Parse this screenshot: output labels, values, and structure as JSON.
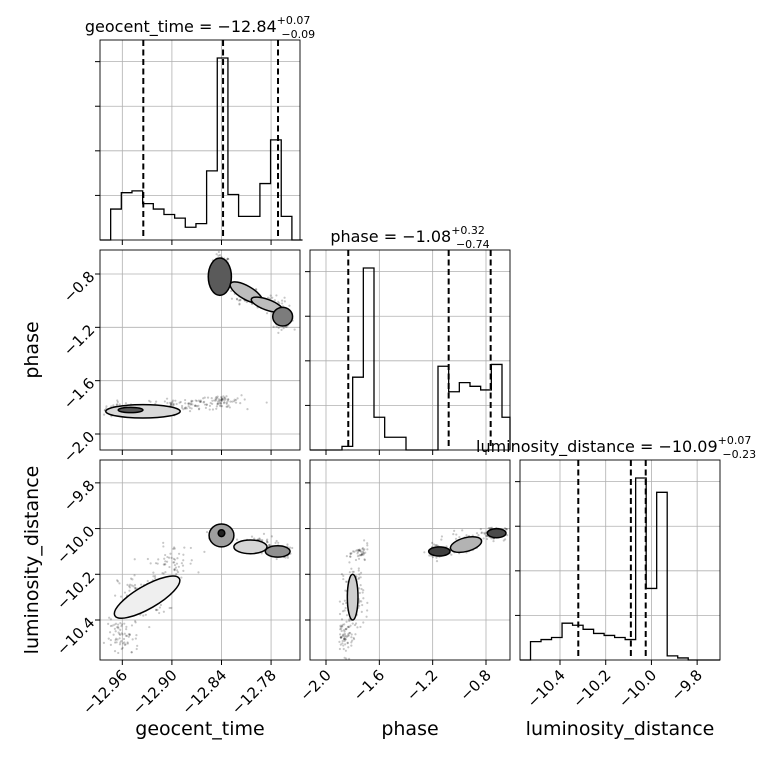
{
  "chart_data": {
    "type": "corner",
    "parameters": [
      "geocent_time",
      "phase",
      "luminosity_distance"
    ],
    "ranges": {
      "geocent_time": [
        -12.987,
        -12.745
      ],
      "phase": [
        -2.12,
        -0.62
      ],
      "luminosity_distance": [
        -10.575,
        -9.7
      ]
    },
    "grid": true,
    "titles": [
      {
        "label": "geocent_time = −12.84",
        "sup": "+0.07",
        "sub": "−0.09"
      },
      {
        "label": "phase = −1.08",
        "sup": "+0.32",
        "sub": "−0.74"
      },
      {
        "label": "luminosity_distance = −10.09",
        "sup": "+0.07",
        "sub": "−0.23"
      }
    ],
    "axis_labels": {
      "geocent_time": "geocent_time",
      "phase": "phase",
      "luminosity_distance": "luminosity_distance"
    },
    "ticks": {
      "geocent_time": {
        "values": [
          -12.96,
          -12.9,
          -12.84,
          -12.78
        ],
        "labels": [
          "−12.96",
          "−12.90",
          "−12.84",
          "−12.78"
        ]
      },
      "phase": {
        "values": [
          -2.0,
          -1.6,
          -1.2,
          -0.8
        ],
        "labels": [
          "−2.0",
          "−1.6",
          "−1.2",
          "−0.8"
        ]
      },
      "luminosity_distance": {
        "values": [
          -10.4,
          -10.2,
          -10.0,
          -9.8
        ],
        "labels": [
          "−10.4",
          "−10.2",
          "−10.0",
          "−9.8"
        ]
      }
    },
    "histograms": {
      "geocent_time": {
        "edges": [
          -12.987,
          -12.9741,
          -12.9612,
          -12.9483,
          -12.9354,
          -12.9225,
          -12.9096,
          -12.8967,
          -12.8838,
          -12.8709,
          -12.858,
          -12.8451,
          -12.8322,
          -12.8193,
          -12.8064,
          -12.7935,
          -12.7806,
          -12.7677,
          -12.7548,
          -12.7419
        ],
        "counts": [
          0,
          0.17,
          0.26,
          0.27,
          0.2,
          0.17,
          0.14,
          0.12,
          0.07,
          0.09,
          0.38,
          1.0,
          0.25,
          0.13,
          0.13,
          0.31,
          0.55,
          0.13,
          0
        ]
      },
      "phase": {
        "edges": [
          -2.12,
          -2.04,
          -1.96,
          -1.88,
          -1.8,
          -1.72,
          -1.64,
          -1.56,
          -1.48,
          -1.4,
          -1.32,
          -1.24,
          -1.16,
          -1.08,
          -1.0,
          -0.92,
          -0.84,
          -0.76,
          -0.68,
          -0.62
        ],
        "counts": [
          0,
          0,
          0,
          0.02,
          0.4,
          1.0,
          0.18,
          0.07,
          0.07,
          0,
          0,
          0,
          0.46,
          0.32,
          0.37,
          0.35,
          0.33,
          0.47,
          0.18
        ]
      },
      "luminosity_distance": {
        "edges": [
          -10.575,
          -10.529,
          -10.483,
          -10.437,
          -10.391,
          -10.345,
          -10.299,
          -10.253,
          -10.207,
          -10.161,
          -10.115,
          -10.069,
          -10.023,
          -9.977,
          -9.931,
          -9.885,
          -9.839,
          -9.793,
          -9.747,
          -9.7
        ],
        "counts": [
          0,
          0.09,
          0.1,
          0.11,
          0.18,
          0.17,
          0.15,
          0.13,
          0.12,
          0.11,
          0.1,
          0.89,
          0.35,
          0.82,
          0.02,
          0.01,
          0,
          0,
          0
        ]
      }
    },
    "quantiles": {
      "geocent_time": [
        -12.9346,
        -12.8381,
        -12.7716
      ],
      "phase": [
        -1.833,
        -1.08,
        -0.765
      ],
      "luminosity_distance": [
        -10.32,
        -10.09,
        -10.025
      ]
    },
    "scatter_density": {
      "geocent_time|phase": [
        {
          "x": -12.84,
          "y": -0.76,
          "sx": 0.005,
          "sy": 0.05,
          "n": 120
        },
        {
          "x": -12.81,
          "y": -0.96,
          "sx": 0.008,
          "sy": 0.03,
          "n": 70
        },
        {
          "x": -12.78,
          "y": -1.03,
          "sx": 0.008,
          "sy": 0.03,
          "n": 70
        },
        {
          "x": -12.765,
          "y": -1.14,
          "sx": 0.006,
          "sy": 0.03,
          "n": 80
        },
        {
          "x": -12.96,
          "y": -1.83,
          "sx": 0.014,
          "sy": 0.025,
          "n": 120
        },
        {
          "x": -12.88,
          "y": -1.78,
          "sx": 0.03,
          "sy": 0.02,
          "n": 100
        },
        {
          "x": -12.84,
          "y": -1.75,
          "sx": 0.012,
          "sy": 0.02,
          "n": 50
        }
      ],
      "geocent_time|luminosity_distance": [
        {
          "x": -12.84,
          "y": -10.02,
          "sx": 0.006,
          "sy": 0.02,
          "n": 100
        },
        {
          "x": -12.795,
          "y": -10.07,
          "sx": 0.01,
          "sy": 0.02,
          "n": 60
        },
        {
          "x": -12.77,
          "y": -10.1,
          "sx": 0.007,
          "sy": 0.015,
          "n": 70
        },
        {
          "x": -12.935,
          "y": -10.3,
          "sx": 0.015,
          "sy": 0.05,
          "n": 110
        },
        {
          "x": -12.9,
          "y": -10.15,
          "sx": 0.015,
          "sy": 0.04,
          "n": 60
        },
        {
          "x": -12.96,
          "y": -10.48,
          "sx": 0.01,
          "sy": 0.04,
          "n": 70
        }
      ],
      "phase|luminosity_distance": [
        {
          "x": -1.8,
          "y": -10.3,
          "sx": 0.04,
          "sy": 0.08,
          "n": 130
        },
        {
          "x": -1.86,
          "y": -10.47,
          "sx": 0.03,
          "sy": 0.04,
          "n": 60
        },
        {
          "x": -1.74,
          "y": -10.11,
          "sx": 0.03,
          "sy": 0.02,
          "n": 40
        },
        {
          "x": -1.15,
          "y": -10.1,
          "sx": 0.05,
          "sy": 0.02,
          "n": 60
        },
        {
          "x": -0.95,
          "y": -10.06,
          "sx": 0.06,
          "sy": 0.02,
          "n": 60
        },
        {
          "x": -0.75,
          "y": -10.02,
          "sx": 0.05,
          "sy": 0.015,
          "n": 80
        }
      ]
    },
    "contour_regions": {
      "geocent_time|phase": [
        {
          "x": -12.842,
          "y": -0.82,
          "rx": 0.014,
          "ry": 0.14,
          "rot": 0,
          "fill": "#5a5a5a"
        },
        {
          "x": -12.81,
          "y": -0.94,
          "rx": 0.022,
          "ry": 0.05,
          "rot": 30,
          "fill": "#bdbdbd"
        },
        {
          "x": -12.785,
          "y": -1.03,
          "rx": 0.02,
          "ry": 0.04,
          "rot": 20,
          "fill": "#bdbdbd"
        },
        {
          "x": -12.766,
          "y": -1.12,
          "rx": 0.012,
          "ry": 0.07,
          "rot": 0,
          "fill": "#7c7c7c"
        },
        {
          "x": -12.935,
          "y": -1.83,
          "rx": 0.045,
          "ry": 0.05,
          "rot": 0,
          "fill": "#d9d9d9"
        },
        {
          "x": -12.95,
          "y": -1.82,
          "rx": 0.015,
          "ry": 0.02,
          "rot": 0,
          "fill": "#595959"
        }
      ],
      "geocent_time|luminosity_distance": [
        {
          "x": -12.84,
          "y": -10.03,
          "rx": 0.015,
          "ry": 0.05,
          "rot": 0,
          "fill": "#9e9e9e"
        },
        {
          "x": -12.84,
          "y": -10.02,
          "rx": 0.004,
          "ry": 0.015,
          "rot": 0,
          "fill": "#222222"
        },
        {
          "x": -12.805,
          "y": -10.08,
          "rx": 0.02,
          "ry": 0.03,
          "rot": 0,
          "fill": "#d6d6d6"
        },
        {
          "x": -12.772,
          "y": -10.1,
          "rx": 0.015,
          "ry": 0.025,
          "rot": 0,
          "fill": "#8f8f8f"
        },
        {
          "x": -12.93,
          "y": -10.3,
          "rx": 0.045,
          "ry": 0.05,
          "rot": -30,
          "fill": "#efefef"
        }
      ],
      "phase|luminosity_distance": [
        {
          "x": -1.8,
          "y": -10.3,
          "rx": 0.04,
          "ry": 0.1,
          "rot": 0,
          "fill": "#cfcfcf"
        },
        {
          "x": -1.15,
          "y": -10.1,
          "rx": 0.08,
          "ry": 0.02,
          "rot": 0,
          "fill": "#3f3f3f"
        },
        {
          "x": -0.95,
          "y": -10.07,
          "rx": 0.12,
          "ry": 0.03,
          "rot": -15,
          "fill": "#b3b3b3"
        },
        {
          "x": -0.72,
          "y": -10.02,
          "rx": 0.07,
          "ry": 0.02,
          "rot": 0,
          "fill": "#4a4a4a"
        }
      ]
    }
  }
}
